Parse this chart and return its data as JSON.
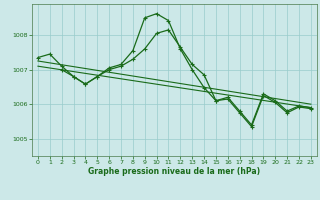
{
  "background_color": "#cce8e8",
  "grid_color": "#99cccc",
  "line_color": "#1a6b1a",
  "title": "Graphe pression niveau de la mer (hPa)",
  "yticks": [
    1005,
    1006,
    1007,
    1008
  ],
  "xticks": [
    0,
    1,
    2,
    3,
    4,
    5,
    6,
    7,
    8,
    9,
    10,
    11,
    12,
    13,
    14,
    15,
    16,
    17,
    18,
    19,
    20,
    21,
    22,
    23
  ],
  "xlim": [
    -0.5,
    23.5
  ],
  "ylim": [
    1004.5,
    1008.9
  ],
  "series1_x": [
    0,
    1,
    2,
    3,
    4,
    5,
    6,
    7,
    8,
    9,
    10,
    11,
    12,
    13,
    14,
    15,
    16,
    17,
    18,
    19,
    20,
    21,
    22,
    23
  ],
  "series1_y": [
    1007.35,
    1007.45,
    1007.1,
    1006.8,
    1006.58,
    1006.8,
    1007.0,
    1007.1,
    1007.3,
    1007.6,
    1008.05,
    1008.15,
    1007.65,
    1007.15,
    1006.85,
    1006.1,
    1006.2,
    1005.8,
    1005.4,
    1006.3,
    1006.1,
    1005.8,
    1005.95,
    1005.9
  ],
  "series2_x": [
    0,
    23
  ],
  "series2_y": [
    1007.25,
    1006.0
  ],
  "series3_x": [
    0,
    23
  ],
  "series3_y": [
    1007.1,
    1005.9
  ],
  "series4_x": [
    2,
    3,
    4,
    5,
    6,
    7,
    8,
    9,
    10,
    11,
    12,
    13,
    14,
    15,
    16,
    17,
    18,
    19,
    20,
    21,
    22,
    23
  ],
  "series4_y": [
    1007.0,
    1006.8,
    1006.58,
    1006.8,
    1007.05,
    1007.15,
    1007.55,
    1008.5,
    1008.62,
    1008.42,
    1007.6,
    1007.0,
    1006.48,
    1006.1,
    1006.15,
    1005.75,
    1005.35,
    1006.25,
    1006.05,
    1005.75,
    1005.92,
    1005.87
  ]
}
